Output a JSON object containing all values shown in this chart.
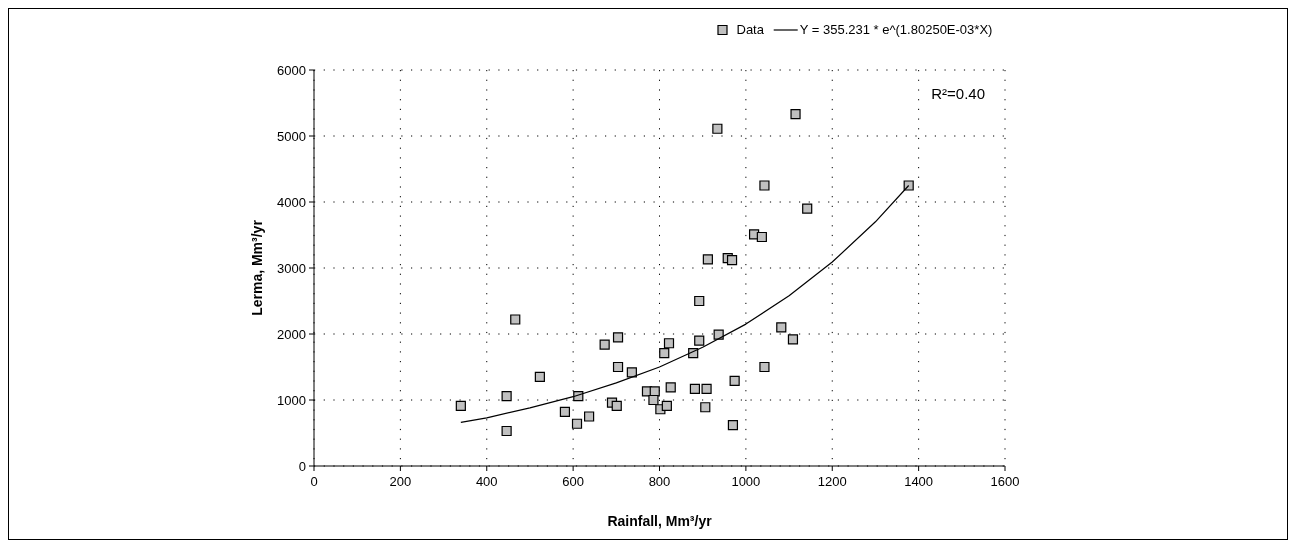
{
  "chart_data": {
    "type": "scatter",
    "xlabel": "Rainfall, Mm³/yr",
    "ylabel": "Lerma, Mm³/yr",
    "xlim": [
      0,
      1600
    ],
    "ylim": [
      0,
      6000
    ],
    "xticks": [
      0,
      200,
      400,
      600,
      800,
      1000,
      1200,
      1400,
      1600
    ],
    "yticks": [
      0,
      1000,
      2000,
      3000,
      4000,
      5000,
      6000
    ],
    "grid": true,
    "legend": "top right",
    "marker": "square",
    "annotations": [
      {
        "text": "R²=0.40"
      }
    ],
    "series": [
      {
        "name": "Data",
        "color": "#c0c0c0",
        "x": [
          340,
          466,
          446,
          446,
          523,
          581,
          609,
          612,
          637,
          673,
          704,
          704,
          690,
          701,
          736,
          771,
          789,
          786,
          802,
          817,
          826,
          811,
          822,
          878,
          882,
          909,
          906,
          892,
          892,
          937,
          974,
          970,
          912,
          958,
          968,
          934,
          1019,
          1037,
          1043,
          1043,
          1082,
          1109,
          1142,
          1115,
          1377
        ],
        "values": [
          910,
          2220,
          1060,
          530,
          1350,
          820,
          640,
          1060,
          750,
          1840,
          1950,
          1500,
          960,
          910,
          1420,
          1130,
          1130,
          1000,
          860,
          910,
          1190,
          1710,
          1860,
          1710,
          1170,
          1170,
          890,
          1900,
          2500,
          1990,
          1290,
          620,
          3130,
          3150,
          3120,
          5110,
          3510,
          3470,
          4250,
          1500,
          2100,
          1920,
          3900,
          5330,
          4250
        ]
      },
      {
        "name": "Y = 355.231 * e^(1.80250E-03*X)",
        "type": "line",
        "color": "#000000",
        "line_style": "solid",
        "marker": "none",
        "x": [
          340,
          400,
          500,
          600,
          700,
          800,
          900,
          1000,
          1100,
          1200,
          1300,
          1377
        ],
        "values": [
          660,
          730,
          880,
          1050,
          1260,
          1500,
          1800,
          2150,
          2580,
          3090,
          3700,
          4250
        ]
      }
    ]
  }
}
